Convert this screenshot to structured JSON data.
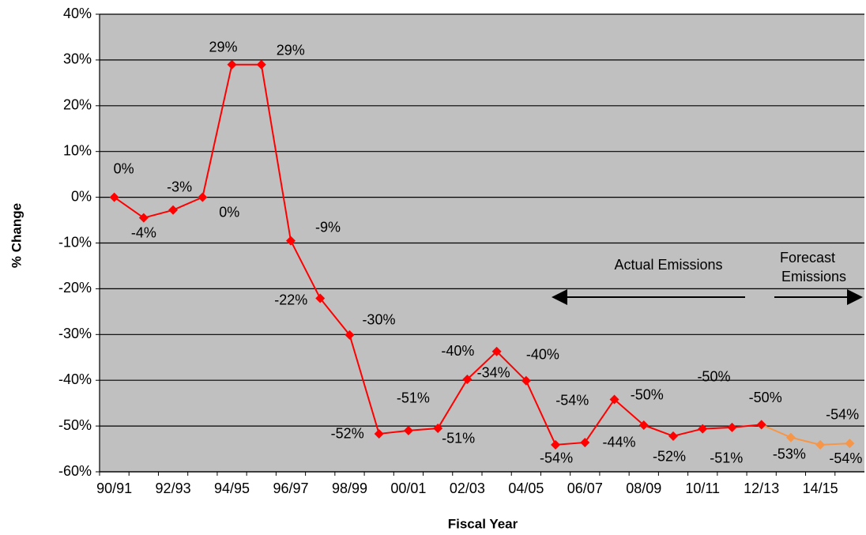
{
  "chart_data": {
    "type": "line",
    "xlabel": "Fiscal Year",
    "ylabel": "% Change",
    "categories": [
      "90/91",
      null,
      "92/93",
      null,
      "94/95",
      null,
      "96/97",
      null,
      "98/99",
      null,
      "00/01",
      null,
      "02/03",
      null,
      "04/05",
      null,
      "06/07",
      null,
      "08/09",
      null,
      "10/11",
      null,
      "12/13",
      null,
      "14/15",
      null
    ],
    "series": [
      {
        "color": "#ff0000",
        "values": [
          0,
          -4.5,
          -2.8,
          0,
          29,
          29,
          -9.5,
          -22.1,
          -30.1,
          -51.7,
          -51,
          -50.5,
          -39.8,
          -33.7,
          -40.1,
          -54.1,
          -53.6,
          -44.2,
          -49.8,
          -52.2,
          -50.6,
          -50.3,
          -49.7,
          null,
          null,
          null
        ],
        "value_labels": [
          "0%",
          "-4%",
          "-3%",
          "0%",
          "29%",
          "29%",
          "-9%",
          "-22%",
          "-30%",
          "-52%",
          "-51%",
          "-51%",
          "-40%",
          "-34%",
          "-40%",
          "-54%",
          "-54%",
          "-44%",
          "-50%",
          "-52%",
          "-51%",
          "-50%",
          "-50%",
          null,
          null,
          null
        ]
      },
      {
        "color": "#f79646",
        "values": [
          null,
          null,
          null,
          null,
          null,
          null,
          null,
          null,
          null,
          null,
          null,
          null,
          null,
          null,
          null,
          null,
          null,
          null,
          null,
          null,
          null,
          null,
          -49.7,
          -52.5,
          -54.1,
          -53.8
        ],
        "value_labels": [
          null,
          null,
          null,
          null,
          null,
          null,
          null,
          null,
          null,
          null,
          null,
          null,
          null,
          null,
          null,
          null,
          null,
          null,
          null,
          null,
          null,
          null,
          null,
          "-53%",
          "-54%",
          "-54%"
        ]
      }
    ],
    "ylim": [
      -60,
      40
    ],
    "yticks": [
      {
        "value": -60,
        "label": "-60%"
      },
      {
        "value": -50,
        "label": "-50%"
      },
      {
        "value": -40,
        "label": "-40%"
      },
      {
        "value": -30,
        "label": "-30%"
      },
      {
        "value": -20,
        "label": "-20%"
      },
      {
        "value": -10,
        "label": "-10%"
      },
      {
        "value": 0,
        "label": "0%"
      },
      {
        "value": 10,
        "label": "10%"
      },
      {
        "value": 20,
        "label": "20%"
      },
      {
        "value": 30,
        "label": "30%"
      },
      {
        "value": 40,
        "label": "40%"
      }
    ],
    "grid": true,
    "annotations": [
      "Actual Emissions",
      "Forecast",
      "Emissions"
    ]
  }
}
